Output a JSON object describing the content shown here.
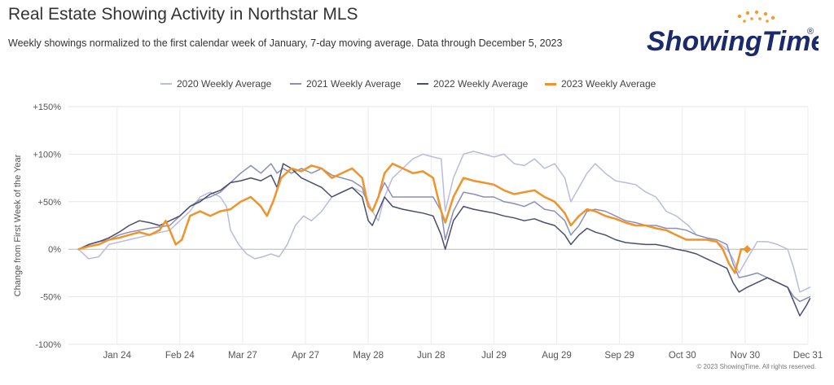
{
  "header": {
    "title": "Real Estate Showing Activity in Northstar MLS",
    "subtitle": "Weekly showings normalized to the first calendar week of January, 7-day moving average. Data through December 5, 2023"
  },
  "logo": {
    "text": "ShowingTime",
    "trademark": "®",
    "color": "#1b2a6b",
    "accent": "#f39c2d"
  },
  "footer": {
    "copyright": "© 2023 ShowingTime. All rights reserved."
  },
  "chart_data": {
    "type": "line",
    "title": "Real Estate Showing Activity in Northstar MLS",
    "ylabel": "Change from First Week of the Year",
    "xlabel": "",
    "ylim": [
      -100,
      150
    ],
    "xlim": [
      0,
      365
    ],
    "x_unit": "day of year",
    "y_ticks": [
      150,
      100,
      50,
      0,
      -50,
      -100
    ],
    "y_tick_labels": [
      "+150%",
      "+100%",
      "+50%",
      "0%",
      "-50%",
      "-100%"
    ],
    "x_ticks": [
      24,
      55,
      86,
      117,
      148,
      179,
      210,
      241,
      272,
      303,
      334,
      365
    ],
    "x_tick_labels": [
      "Jan 24",
      "Feb 24",
      "Mar 27",
      "Apr 27",
      "May 28",
      "Jun 28",
      "Jul 29",
      "Aug 29",
      "Sep 29",
      "Oct 30",
      "Nov 30",
      "Dec 31"
    ],
    "grid": true,
    "legend_position": "top-center",
    "series": [
      {
        "name": "2020 Weekly Average",
        "color": "#b9bcdc",
        "width": 1.5,
        "points": [
          [
            5,
            0
          ],
          [
            10,
            -10
          ],
          [
            15,
            -8
          ],
          [
            20,
            5
          ],
          [
            30,
            10
          ],
          [
            40,
            15
          ],
          [
            50,
            20
          ],
          [
            55,
            30
          ],
          [
            60,
            40
          ],
          [
            65,
            55
          ],
          [
            70,
            60
          ],
          [
            75,
            55
          ],
          [
            78,
            45
          ],
          [
            80,
            20
          ],
          [
            84,
            5
          ],
          [
            88,
            -5
          ],
          [
            92,
            -10
          ],
          [
            96,
            -8
          ],
          [
            100,
            -5
          ],
          [
            104,
            -8
          ],
          [
            108,
            5
          ],
          [
            112,
            25
          ],
          [
            116,
            35
          ],
          [
            120,
            30
          ],
          [
            125,
            40
          ],
          [
            130,
            55
          ],
          [
            135,
            60
          ],
          [
            140,
            65
          ],
          [
            145,
            60
          ],
          [
            148,
            50
          ],
          [
            150,
            40
          ],
          [
            153,
            30
          ],
          [
            156,
            55
          ],
          [
            160,
            75
          ],
          [
            165,
            85
          ],
          [
            170,
            95
          ],
          [
            175,
            100
          ],
          [
            180,
            97
          ],
          [
            184,
            95
          ],
          [
            186,
            40
          ],
          [
            190,
            75
          ],
          [
            195,
            100
          ],
          [
            200,
            103
          ],
          [
            205,
            100
          ],
          [
            210,
            97
          ],
          [
            215,
            100
          ],
          [
            220,
            90
          ],
          [
            225,
            88
          ],
          [
            230,
            95
          ],
          [
            235,
            85
          ],
          [
            240,
            90
          ],
          [
            245,
            75
          ],
          [
            248,
            50
          ],
          [
            252,
            65
          ],
          [
            256,
            80
          ],
          [
            260,
            90
          ],
          [
            265,
            80
          ],
          [
            270,
            72
          ],
          [
            275,
            70
          ],
          [
            280,
            68
          ],
          [
            285,
            60
          ],
          [
            290,
            55
          ],
          [
            295,
            40
          ],
          [
            300,
            35
          ],
          [
            303,
            30
          ],
          [
            306,
            25
          ],
          [
            310,
            15
          ],
          [
            315,
            12
          ],
          [
            320,
            8
          ],
          [
            325,
            0
          ],
          [
            328,
            -10
          ],
          [
            331,
            -25
          ],
          [
            335,
            -10
          ],
          [
            340,
            8
          ],
          [
            345,
            8
          ],
          [
            350,
            5
          ],
          [
            355,
            0
          ],
          [
            358,
            -20
          ],
          [
            361,
            -45
          ],
          [
            364,
            -42
          ],
          [
            366,
            -40
          ]
        ]
      },
      {
        "name": "2021 Weekly Average",
        "color": "#8a8fb8",
        "width": 1.5,
        "points": [
          [
            5,
            0
          ],
          [
            10,
            5
          ],
          [
            15,
            8
          ],
          [
            20,
            10
          ],
          [
            25,
            15
          ],
          [
            30,
            18
          ],
          [
            40,
            22
          ],
          [
            50,
            25
          ],
          [
            55,
            35
          ],
          [
            60,
            45
          ],
          [
            65,
            52
          ],
          [
            70,
            55
          ],
          [
            75,
            60
          ],
          [
            80,
            70
          ],
          [
            85,
            80
          ],
          [
            90,
            88
          ],
          [
            95,
            80
          ],
          [
            100,
            90
          ],
          [
            103,
            80
          ],
          [
            106,
            85
          ],
          [
            110,
            80
          ],
          [
            115,
            85
          ],
          [
            120,
            80
          ],
          [
            125,
            85
          ],
          [
            130,
            78
          ],
          [
            135,
            75
          ],
          [
            140,
            72
          ],
          [
            145,
            65
          ],
          [
            148,
            45
          ],
          [
            150,
            40
          ],
          [
            153,
            55
          ],
          [
            156,
            70
          ],
          [
            160,
            55
          ],
          [
            165,
            55
          ],
          [
            170,
            55
          ],
          [
            175,
            55
          ],
          [
            180,
            55
          ],
          [
            184,
            40
          ],
          [
            186,
            10
          ],
          [
            190,
            40
          ],
          [
            195,
            60
          ],
          [
            200,
            58
          ],
          [
            205,
            55
          ],
          [
            210,
            55
          ],
          [
            215,
            50
          ],
          [
            220,
            48
          ],
          [
            225,
            45
          ],
          [
            230,
            50
          ],
          [
            235,
            42
          ],
          [
            240,
            40
          ],
          [
            245,
            30
          ],
          [
            248,
            15
          ],
          [
            252,
            25
          ],
          [
            256,
            40
          ],
          [
            260,
            42
          ],
          [
            265,
            40
          ],
          [
            270,
            35
          ],
          [
            275,
            30
          ],
          [
            280,
            28
          ],
          [
            285,
            25
          ],
          [
            290,
            25
          ],
          [
            295,
            22
          ],
          [
            300,
            22
          ],
          [
            305,
            20
          ],
          [
            310,
            15
          ],
          [
            315,
            12
          ],
          [
            320,
            10
          ],
          [
            325,
            5
          ],
          [
            328,
            -15
          ],
          [
            331,
            -30
          ],
          [
            335,
            -28
          ],
          [
            340,
            -25
          ],
          [
            345,
            -30
          ],
          [
            350,
            -35
          ],
          [
            355,
            -40
          ],
          [
            358,
            -50
          ],
          [
            361,
            -55
          ],
          [
            364,
            -52
          ],
          [
            366,
            -50
          ]
        ]
      },
      {
        "name": "2022 Weekly Average",
        "color": "#4a4e6e",
        "width": 1.5,
        "points": [
          [
            5,
            0
          ],
          [
            10,
            5
          ],
          [
            15,
            8
          ],
          [
            20,
            12
          ],
          [
            25,
            18
          ],
          [
            30,
            25
          ],
          [
            35,
            30
          ],
          [
            40,
            28
          ],
          [
            45,
            25
          ],
          [
            50,
            30
          ],
          [
            55,
            35
          ],
          [
            60,
            45
          ],
          [
            65,
            50
          ],
          [
            70,
            58
          ],
          [
            75,
            62
          ],
          [
            80,
            70
          ],
          [
            85,
            72
          ],
          [
            90,
            75
          ],
          [
            95,
            72
          ],
          [
            100,
            78
          ],
          [
            103,
            65
          ],
          [
            106,
            90
          ],
          [
            110,
            85
          ],
          [
            115,
            75
          ],
          [
            120,
            70
          ],
          [
            125,
            65
          ],
          [
            130,
            55
          ],
          [
            135,
            60
          ],
          [
            140,
            65
          ],
          [
            145,
            55
          ],
          [
            148,
            30
          ],
          [
            150,
            25
          ],
          [
            153,
            40
          ],
          [
            156,
            55
          ],
          [
            160,
            45
          ],
          [
            165,
            42
          ],
          [
            170,
            40
          ],
          [
            175,
            38
          ],
          [
            180,
            35
          ],
          [
            184,
            15
          ],
          [
            186,
            0
          ],
          [
            190,
            30
          ],
          [
            195,
            45
          ],
          [
            200,
            42
          ],
          [
            205,
            40
          ],
          [
            210,
            38
          ],
          [
            215,
            35
          ],
          [
            220,
            33
          ],
          [
            225,
            30
          ],
          [
            230,
            32
          ],
          [
            235,
            28
          ],
          [
            240,
            25
          ],
          [
            245,
            15
          ],
          [
            248,
            5
          ],
          [
            252,
            15
          ],
          [
            256,
            22
          ],
          [
            260,
            18
          ],
          [
            265,
            15
          ],
          [
            270,
            10
          ],
          [
            275,
            7
          ],
          [
            280,
            6
          ],
          [
            285,
            5
          ],
          [
            290,
            5
          ],
          [
            295,
            3
          ],
          [
            300,
            0
          ],
          [
            305,
            -2
          ],
          [
            310,
            -5
          ],
          [
            315,
            -10
          ],
          [
            320,
            -15
          ],
          [
            325,
            -20
          ],
          [
            328,
            -35
          ],
          [
            331,
            -45
          ],
          [
            335,
            -40
          ],
          [
            340,
            -35
          ],
          [
            345,
            -30
          ],
          [
            350,
            -35
          ],
          [
            355,
            -40
          ],
          [
            358,
            -55
          ],
          [
            361,
            -70
          ],
          [
            364,
            -60
          ],
          [
            366,
            -52
          ]
        ]
      },
      {
        "name": "2023 Weekly Average",
        "color": "#f0932b",
        "width": 2.5,
        "points": [
          [
            5,
            0
          ],
          [
            10,
            3
          ],
          [
            15,
            5
          ],
          [
            20,
            10
          ],
          [
            25,
            12
          ],
          [
            30,
            15
          ],
          [
            35,
            18
          ],
          [
            40,
            15
          ],
          [
            45,
            20
          ],
          [
            48,
            30
          ],
          [
            50,
            20
          ],
          [
            53,
            5
          ],
          [
            56,
            10
          ],
          [
            60,
            35
          ],
          [
            65,
            40
          ],
          [
            70,
            35
          ],
          [
            75,
            40
          ],
          [
            80,
            42
          ],
          [
            85,
            50
          ],
          [
            90,
            55
          ],
          [
            95,
            45
          ],
          [
            98,
            35
          ],
          [
            101,
            50
          ],
          [
            105,
            75
          ],
          [
            110,
            85
          ],
          [
            115,
            82
          ],
          [
            120,
            88
          ],
          [
            125,
            85
          ],
          [
            130,
            75
          ],
          [
            135,
            80
          ],
          [
            140,
            85
          ],
          [
            145,
            75
          ],
          [
            148,
            45
          ],
          [
            150,
            40
          ],
          [
            153,
            55
          ],
          [
            156,
            80
          ],
          [
            160,
            90
          ],
          [
            165,
            85
          ],
          [
            170,
            80
          ],
          [
            175,
            82
          ],
          [
            180,
            75
          ],
          [
            184,
            40
          ],
          [
            186,
            28
          ],
          [
            190,
            55
          ],
          [
            195,
            75
          ],
          [
            200,
            72
          ],
          [
            205,
            70
          ],
          [
            210,
            68
          ],
          [
            215,
            62
          ],
          [
            220,
            58
          ],
          [
            225,
            60
          ],
          [
            230,
            62
          ],
          [
            235,
            55
          ],
          [
            240,
            50
          ],
          [
            245,
            38
          ],
          [
            248,
            25
          ],
          [
            252,
            35
          ],
          [
            256,
            42
          ],
          [
            260,
            40
          ],
          [
            265,
            35
          ],
          [
            270,
            32
          ],
          [
            275,
            28
          ],
          [
            280,
            25
          ],
          [
            285,
            25
          ],
          [
            290,
            22
          ],
          [
            295,
            20
          ],
          [
            300,
            15
          ],
          [
            305,
            10
          ],
          [
            310,
            10
          ],
          [
            315,
            10
          ],
          [
            320,
            8
          ],
          [
            323,
            0
          ],
          [
            326,
            -15
          ],
          [
            329,
            -25
          ],
          [
            332,
            0
          ],
          [
            335,
            0
          ]
        ],
        "marker_x": 335
      }
    ]
  }
}
